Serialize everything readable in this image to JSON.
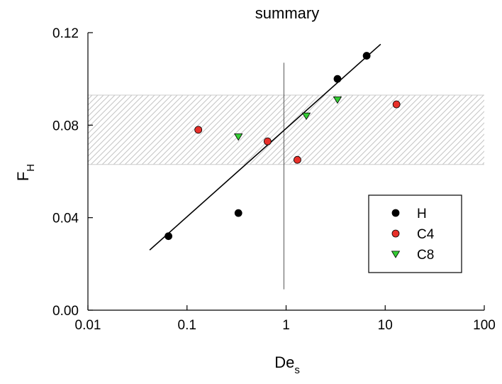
{
  "chart_data": {
    "type": "scatter",
    "title": "summary",
    "xlabel": {
      "main": "De",
      "sub": "s"
    },
    "ylabel": {
      "main": "F",
      "sub": "H"
    },
    "xscale": "log",
    "xlim": [
      0.01,
      100
    ],
    "ylim": [
      0,
      0.12
    ],
    "xticks": [
      {
        "value": 0.01,
        "label": "0.01"
      },
      {
        "value": 0.1,
        "label": "0.1"
      },
      {
        "value": 1,
        "label": "1"
      },
      {
        "value": 10,
        "label": "10"
      },
      {
        "value": 100,
        "label": "100"
      }
    ],
    "yticks": [
      {
        "value": 0,
        "label": "0.00"
      },
      {
        "value": 0.04,
        "label": "0.04"
      },
      {
        "value": 0.08,
        "label": "0.08"
      },
      {
        "value": 0.12,
        "label": "0.12"
      }
    ],
    "series": [
      {
        "name": "H",
        "marker": "circle",
        "color": "#000000",
        "points": [
          {
            "x": 0.065,
            "y": 0.032
          },
          {
            "x": 0.33,
            "y": 0.042
          },
          {
            "x": 3.3,
            "y": 0.1
          },
          {
            "x": 6.5,
            "y": 0.11
          }
        ]
      },
      {
        "name": "C4",
        "marker": "circle",
        "color": "#e8302a",
        "points": [
          {
            "x": 0.13,
            "y": 0.078
          },
          {
            "x": 0.65,
            "y": 0.073
          },
          {
            "x": 1.3,
            "y": 0.065
          },
          {
            "x": 13,
            "y": 0.089
          }
        ]
      },
      {
        "name": "C8",
        "marker": "triangle-down",
        "color": "#33cc33",
        "points": [
          {
            "x": 0.33,
            "y": 0.075
          },
          {
            "x": 1.6,
            "y": 0.084
          },
          {
            "x": 3.3,
            "y": 0.091
          }
        ]
      }
    ],
    "fit_line": {
      "x": [
        0.042,
        9.0
      ],
      "y": [
        0.026,
        0.115
      ],
      "color": "#000000"
    },
    "vertical_line": {
      "x": 0.95,
      "y_range": [
        0.009,
        0.107
      ],
      "color": "#555555"
    },
    "band": {
      "y_range": [
        0.063,
        0.093
      ],
      "pattern": "diagonal-hatch",
      "color": "#bbbbbb"
    },
    "legend": {
      "position": "lower-right"
    }
  }
}
